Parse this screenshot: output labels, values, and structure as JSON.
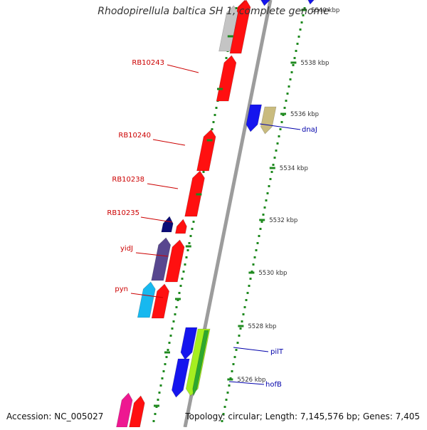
{
  "title": "Rhodopirellula baltica SH 1, complete genome",
  "footer": {
    "accession": "Accession: NC_005027",
    "topology": "Topology: circular; Length: 7,145,576 bp; Genes: 7,405"
  },
  "colors": {
    "backbone": "#9c9c9c",
    "tick": "#1f8a1f",
    "left_label": "#cc0000",
    "right_label": "#0000aa",
    "red": "#ff1010",
    "blue": "#1515ee",
    "grey": "#c4c4c4",
    "tan": "#c9bb7e",
    "navy": "#0c0c77",
    "purple": "#58478f",
    "cyan": "#17b8ef",
    "lime": "#a6ef20",
    "green": "#2ea82e",
    "pink": "#ee1891"
  },
  "scale": {
    "labels": [
      "5540 kbp",
      "5538 kbp",
      "5536 kbp",
      "5534 kbp",
      "5532 kbp",
      "5530 kbp",
      "5528 kbp",
      "5526 kbp"
    ]
  },
  "left_labels": [
    "RB10243",
    "RB10240",
    "RB10238",
    "RB10235",
    "yidJ",
    "pyn"
  ],
  "right_labels": [
    "dnaJ",
    "pilT",
    "hofB"
  ]
}
